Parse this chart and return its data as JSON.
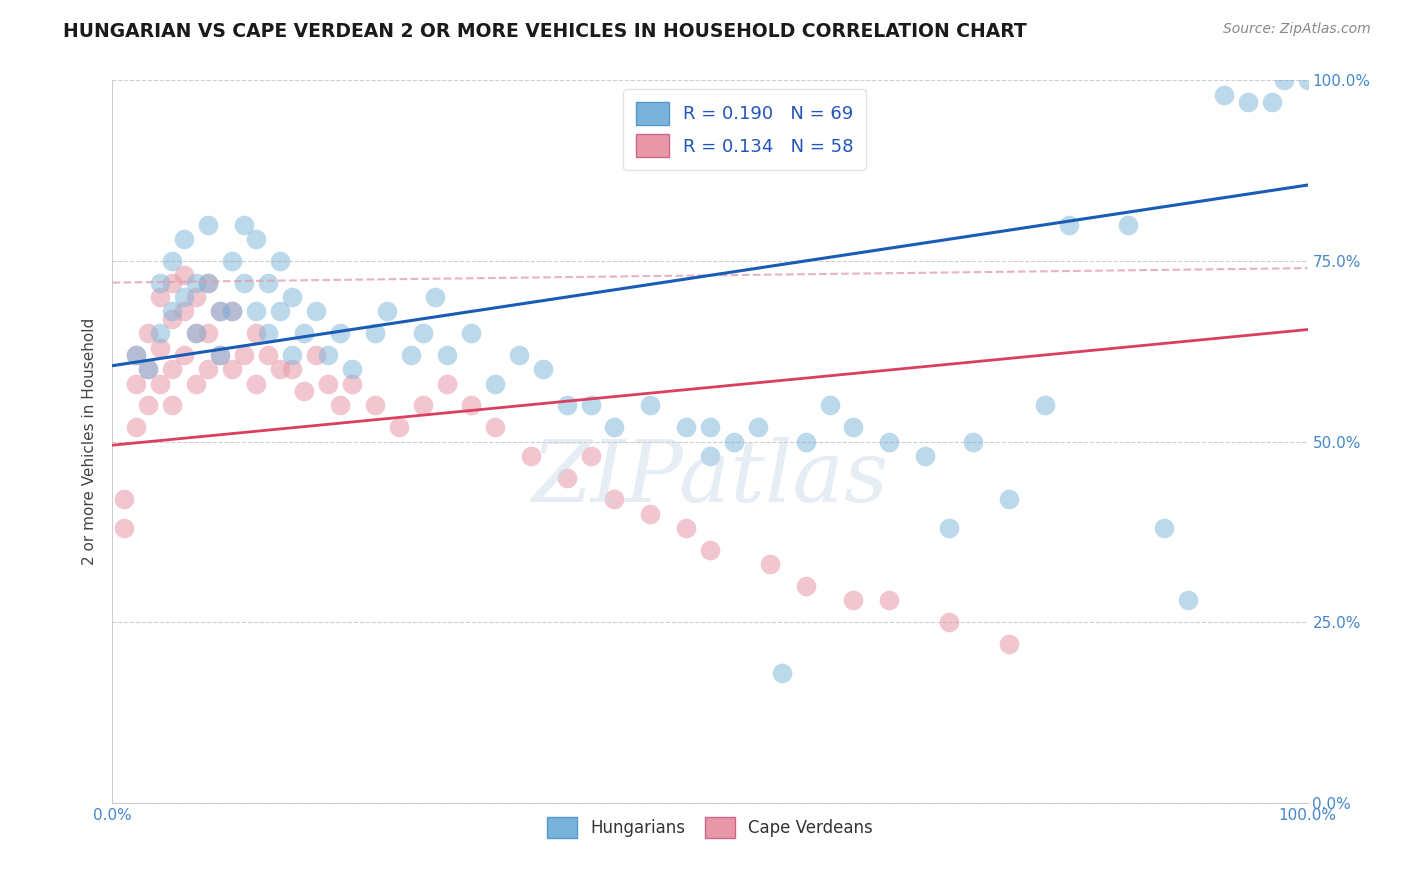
{
  "title": "HUNGARIAN VS CAPE VERDEAN 2 OR MORE VEHICLES IN HOUSEHOLD CORRELATION CHART",
  "source_text": "Source: ZipAtlas.com",
  "ylabel": "2 or more Vehicles in Household",
  "xlim": [
    0.0,
    1.0
  ],
  "ylim": [
    0.0,
    1.0
  ],
  "ytick_positions": [
    0.0,
    0.25,
    0.5,
    0.75,
    1.0
  ],
  "ytick_labels": [
    "0.0%",
    "25.0%",
    "50.0%",
    "75.0%",
    "100.0%"
  ],
  "xtick_positions": [
    0.0,
    1.0
  ],
  "xtick_labels": [
    "0.0%",
    "100.0%"
  ],
  "legend_label1": "Hungarians",
  "legend_label2": "Cape Verdeans",
  "r_hungarian": 0.19,
  "n_hungarian": 69,
  "r_cape_verdean": 0.134,
  "n_cape_verdean": 58,
  "watermark": "ZIPatlas",
  "background_color": "#ffffff",
  "scatter_color_hungarian": "#7ab3d9",
  "scatter_color_cape_verdean": "#e897a8",
  "line_color_hungarian": "#1a5cb5",
  "line_color_cape_verdean": "#d94060",
  "line_color_dashed": "#e0a0b0",
  "grid_color": "#c8c8c8",
  "tick_label_color": "#4488cc",
  "legend_r_color": "#2255bb",
  "blue_line_x0": 0.0,
  "blue_line_y0": 0.605,
  "blue_line_x1": 1.0,
  "blue_line_y1": 0.855,
  "pink_line_x0": 0.0,
  "pink_line_y0": 0.495,
  "pink_line_x1": 1.0,
  "pink_line_y1": 0.655,
  "dashed_line_x0": 0.0,
  "dashed_line_y0": 0.72,
  "dashed_line_x1": 1.0,
  "dashed_line_y1": 0.74,
  "hungarian_x": [
    0.02,
    0.03,
    0.04,
    0.04,
    0.05,
    0.05,
    0.06,
    0.06,
    0.07,
    0.07,
    0.08,
    0.08,
    0.09,
    0.09,
    0.1,
    0.1,
    0.11,
    0.11,
    0.12,
    0.12,
    0.13,
    0.13,
    0.14,
    0.14,
    0.15,
    0.15,
    0.16,
    0.17,
    0.18,
    0.19,
    0.2,
    0.22,
    0.23,
    0.25,
    0.26,
    0.27,
    0.28,
    0.3,
    0.32,
    0.34,
    0.36,
    0.38,
    0.4,
    0.42,
    0.45,
    0.48,
    0.5,
    0.5,
    0.52,
    0.54,
    0.56,
    0.58,
    0.6,
    0.62,
    0.65,
    0.68,
    0.7,
    0.72,
    0.75,
    0.78,
    0.8,
    0.85,
    0.88,
    0.9,
    0.93,
    0.95,
    0.97,
    0.98,
    1.0
  ],
  "hungarian_y": [
    0.62,
    0.6,
    0.72,
    0.65,
    0.75,
    0.68,
    0.78,
    0.7,
    0.72,
    0.65,
    0.8,
    0.72,
    0.68,
    0.62,
    0.75,
    0.68,
    0.8,
    0.72,
    0.78,
    0.68,
    0.72,
    0.65,
    0.75,
    0.68,
    0.7,
    0.62,
    0.65,
    0.68,
    0.62,
    0.65,
    0.6,
    0.65,
    0.68,
    0.62,
    0.65,
    0.7,
    0.62,
    0.65,
    0.58,
    0.62,
    0.6,
    0.55,
    0.55,
    0.52,
    0.55,
    0.52,
    0.52,
    0.48,
    0.5,
    0.52,
    0.18,
    0.5,
    0.55,
    0.52,
    0.5,
    0.48,
    0.38,
    0.5,
    0.42,
    0.55,
    0.8,
    0.8,
    0.38,
    0.28,
    0.98,
    0.97,
    0.97,
    1.0,
    1.0
  ],
  "cape_verdean_x": [
    0.01,
    0.01,
    0.02,
    0.02,
    0.02,
    0.03,
    0.03,
    0.03,
    0.04,
    0.04,
    0.04,
    0.05,
    0.05,
    0.05,
    0.05,
    0.06,
    0.06,
    0.06,
    0.07,
    0.07,
    0.07,
    0.08,
    0.08,
    0.08,
    0.09,
    0.09,
    0.1,
    0.1,
    0.11,
    0.12,
    0.12,
    0.13,
    0.14,
    0.15,
    0.16,
    0.17,
    0.18,
    0.19,
    0.2,
    0.22,
    0.24,
    0.26,
    0.28,
    0.3,
    0.32,
    0.35,
    0.38,
    0.4,
    0.42,
    0.45,
    0.48,
    0.5,
    0.55,
    0.58,
    0.62,
    0.65,
    0.7,
    0.75
  ],
  "cape_verdean_y": [
    0.42,
    0.38,
    0.62,
    0.58,
    0.52,
    0.65,
    0.6,
    0.55,
    0.7,
    0.63,
    0.58,
    0.72,
    0.67,
    0.6,
    0.55,
    0.73,
    0.68,
    0.62,
    0.7,
    0.65,
    0.58,
    0.72,
    0.65,
    0.6,
    0.68,
    0.62,
    0.68,
    0.6,
    0.62,
    0.65,
    0.58,
    0.62,
    0.6,
    0.6,
    0.57,
    0.62,
    0.58,
    0.55,
    0.58,
    0.55,
    0.52,
    0.55,
    0.58,
    0.55,
    0.52,
    0.48,
    0.45,
    0.48,
    0.42,
    0.4,
    0.38,
    0.35,
    0.33,
    0.3,
    0.28,
    0.28,
    0.25,
    0.22
  ]
}
